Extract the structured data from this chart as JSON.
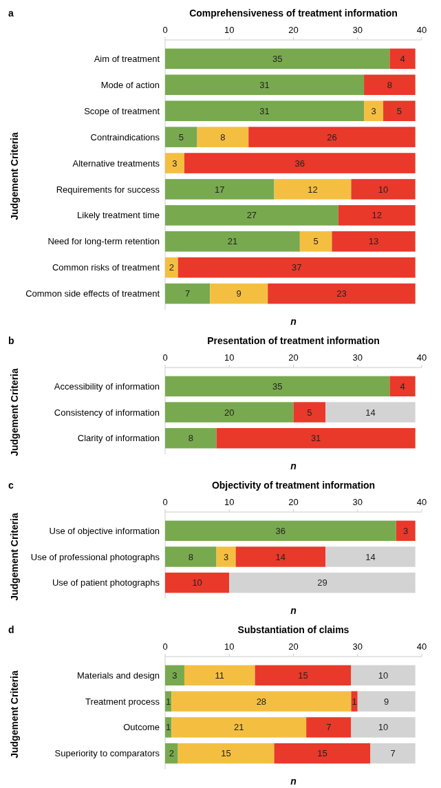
{
  "chart_data": [
    {
      "type": "bar",
      "orientation": "horizontal",
      "stacked": true,
      "title": "Comprehensiveness of treatment information",
      "ylabel": "Judgement Criteria",
      "xlabel": "n",
      "annotations": [
        "a"
      ],
      "xlim": [
        0,
        40
      ],
      "xticks": [
        0,
        10,
        20,
        30,
        40
      ],
      "data_labels": true,
      "grid": false,
      "categories": [
        "Aim of treatment",
        "Mode of action",
        "Scope of treatment",
        "Contraindications",
        "Alternative treatments",
        "Requirements for success",
        "Likely treatment time",
        "Need for long-term retention",
        "Common risks of treatment",
        "Common side effects of treatment"
      ],
      "series": [
        {
          "color": "#78a94f",
          "values": [
            35,
            31,
            31,
            5,
            null,
            17,
            27,
            21,
            null,
            7
          ]
        },
        {
          "color": "#f4bf41",
          "values": [
            null,
            null,
            3,
            8,
            3,
            12,
            null,
            5,
            2,
            9
          ]
        },
        {
          "color": "#e8392a",
          "values": [
            4,
            8,
            5,
            26,
            36,
            10,
            12,
            13,
            37,
            23
          ]
        }
      ]
    },
    {
      "type": "bar",
      "orientation": "horizontal",
      "stacked": true,
      "title": "Presentation of treatment information",
      "ylabel": "Judgement Criteria",
      "xlabel": "n",
      "annotations": [
        "b"
      ],
      "xlim": [
        0,
        40
      ],
      "xticks": [
        0,
        10,
        20,
        30,
        40
      ],
      "data_labels": true,
      "grid": false,
      "categories": [
        "Accessibility of information",
        "Consistency of information",
        "Clarity of information"
      ],
      "series": [
        {
          "color": "#78a94f",
          "values": [
            35,
            20,
            8
          ]
        },
        {
          "color": "#e8392a",
          "values": [
            4,
            5,
            31
          ]
        },
        {
          "color": "#d3d3d3",
          "values": [
            null,
            14,
            null
          ]
        }
      ]
    },
    {
      "type": "bar",
      "orientation": "horizontal",
      "stacked": true,
      "title": "Objectivity of treatment information",
      "ylabel": "Judgement Criteria",
      "xlabel": "n",
      "annotations": [
        "c"
      ],
      "xlim": [
        0,
        40
      ],
      "xticks": [
        0,
        10,
        20,
        30,
        40
      ],
      "data_labels": true,
      "grid": false,
      "categories": [
        "Use of objective information",
        "Use of professional photographs",
        "Use of patient photographs"
      ],
      "series": [
        {
          "color": "#78a94f",
          "values": [
            36,
            8,
            null
          ]
        },
        {
          "color": "#f4bf41",
          "values": [
            null,
            3,
            null
          ]
        },
        {
          "color": "#e8392a",
          "values": [
            3,
            14,
            10
          ]
        },
        {
          "color": "#d3d3d3",
          "values": [
            null,
            14,
            29
          ]
        }
      ]
    },
    {
      "type": "bar",
      "orientation": "horizontal",
      "stacked": true,
      "title": "Substantiation of claims",
      "ylabel": "Judgement Criteria",
      "xlabel": "n",
      "annotations": [
        "d"
      ],
      "xlim": [
        0,
        40
      ],
      "xticks": [
        0,
        10,
        20,
        30,
        40
      ],
      "data_labels": true,
      "grid": false,
      "categories": [
        "Materials and design",
        "Treatment process",
        "Outcome",
        "Superiority to comparators"
      ],
      "series": [
        {
          "color": "#78a94f",
          "values": [
            3,
            1,
            1,
            2
          ]
        },
        {
          "color": "#f4bf41",
          "values": [
            11,
            28,
            21,
            15
          ]
        },
        {
          "color": "#e8392a",
          "values": [
            15,
            1,
            7,
            15
          ]
        },
        {
          "color": "#d3d3d3",
          "values": [
            10,
            9,
            10,
            7
          ]
        }
      ]
    }
  ]
}
